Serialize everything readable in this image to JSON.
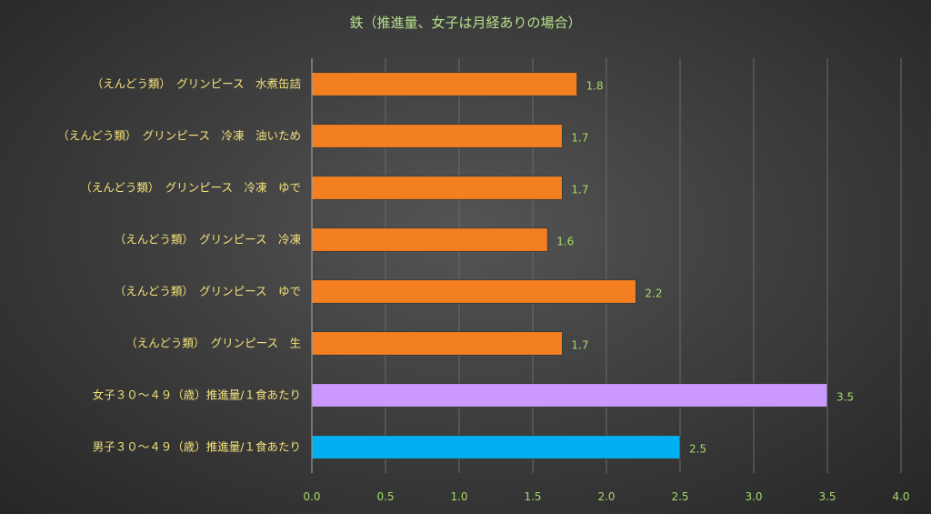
{
  "chart_data": {
    "type": "bar",
    "orientation": "horizontal",
    "title": "鉄（推進量、女子は月経ありの場合）",
    "xlabel": "",
    "ylabel": "",
    "xlim": [
      0,
      4.0
    ],
    "ticks": [
      "0.0",
      "0.5",
      "1.0",
      "1.5",
      "2.0",
      "2.5",
      "3.0",
      "3.5",
      "4.0"
    ],
    "grid": true,
    "categories": [
      "（えんどう類）　グリンピース　水煮缶詰",
      "（えんどう類）　グリンピース　冷凍　油いため",
      "（えんどう類）　グリンピース　冷凍　ゆで",
      "（えんどう類）　グリンピース　冷凍",
      "（えんどう類）　グリンピース　ゆで",
      "（えんどう類）　グリンピース　生",
      "女子３０～４９（歳）推進量/１食あたり",
      "男子３０～４９（歳）推進量/１食あたり"
    ],
    "values": [
      1.8,
      1.7,
      1.7,
      1.6,
      2.2,
      1.7,
      3.5,
      2.5
    ],
    "value_labels": [
      "1.8",
      "1.7",
      "1.7",
      "1.6",
      "2.2",
      "1.7",
      "3.5",
      "2.5"
    ],
    "colors": [
      "#f47f20",
      "#f47f20",
      "#f47f20",
      "#f47f20",
      "#f47f20",
      "#f47f20",
      "#cc99ff",
      "#00b0f0"
    ]
  }
}
